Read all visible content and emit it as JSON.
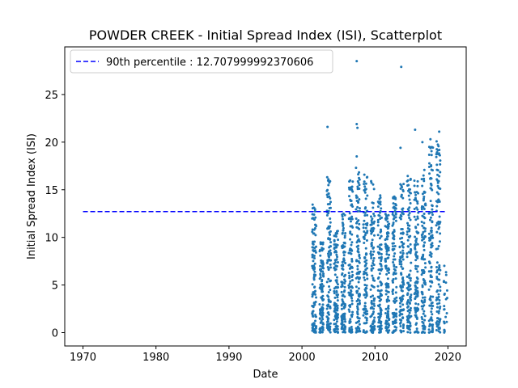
{
  "chart_data": {
    "type": "scatter",
    "title": "POWDER CREEK - Initial Spread Index (ISI), Scatterplot",
    "xlabel": "Date",
    "ylabel": "Initial Spread Index (ISI)",
    "xlim": [
      1967.5,
      2022.5
    ],
    "ylim": [
      -1.4,
      30.0
    ],
    "xticks": [
      1970,
      1980,
      1990,
      2000,
      2010,
      2020
    ],
    "yticks": [
      0,
      5,
      10,
      15,
      20,
      25
    ],
    "grid": false,
    "legend_position": "top-left",
    "series": [
      {
        "name": "",
        "kind": "scatter",
        "color": "#1f77b4",
        "x_range": [
          2001.5,
          2019.9
        ],
        "seasons": [
          2001,
          2002,
          2003,
          2004,
          2005,
          2006,
          2007,
          2008,
          2009,
          2010,
          2011,
          2012,
          2013,
          2014,
          2015,
          2016,
          2017,
          2018,
          2019
        ],
        "notable_points": [
          {
            "x": 2003.5,
            "y": 21.6
          },
          {
            "x": 2007.5,
            "y": 28.5
          },
          {
            "x": 2007.5,
            "y": 21.9
          },
          {
            "x": 2007.6,
            "y": 21.5
          },
          {
            "x": 2013.6,
            "y": 27.9
          },
          {
            "x": 2015.5,
            "y": 21.3
          },
          {
            "x": 2018.8,
            "y": 21.1
          },
          {
            "x": 2007.5,
            "y": 18.5
          },
          {
            "x": 2013.5,
            "y": 19.4
          },
          {
            "x": 2017.6,
            "y": 20.3
          },
          {
            "x": 2016.5,
            "y": 20.0
          }
        ]
      },
      {
        "name": "90th percentile : 12.707999992370606",
        "kind": "hline",
        "color": "#0000ff",
        "style": "dashed",
        "y": 12.707999992370606,
        "x_range": [
          1970,
          2019.9
        ]
      }
    ]
  }
}
